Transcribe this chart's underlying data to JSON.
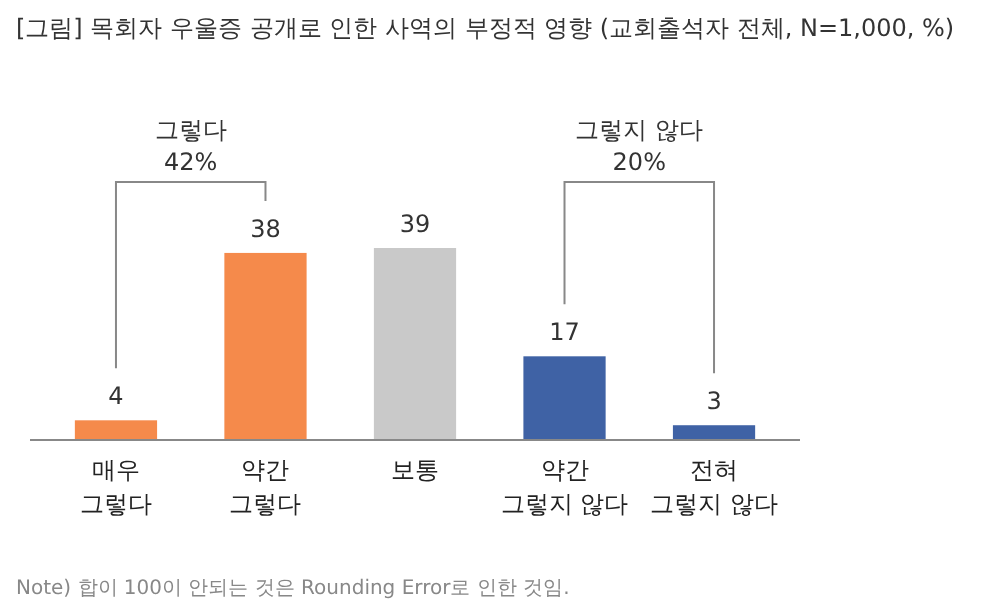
{
  "chart_data": {
    "type": "bar",
    "title": "[그림] 목회자 우울증 공개로 인한 사역의 부정적 영향 (교회출석자 전체, N=1,000, %)",
    "categories": [
      "매우\n그렇다",
      "약간\n그렇다",
      "보통",
      "약간\n그렇지 않다",
      "전혀\n그렇지 않다"
    ],
    "values": [
      4,
      38,
      39,
      17,
      3
    ],
    "colors": [
      "#f58a4b",
      "#f58a4b",
      "#c9c9c9",
      "#3f62a5",
      "#3f62a5"
    ],
    "data_labels": true,
    "annotations": [
      "그렇다\n42%",
      "그렇지 않다\n20%",
      "Note) 합이 100이 안되는 것은 Rounding Error로 인한 것임."
    ]
  }
}
